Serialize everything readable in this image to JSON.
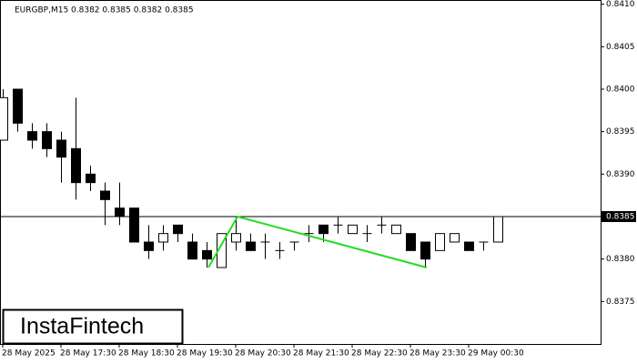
{
  "chart_data": {
    "type": "candlestick",
    "title": "EURGBP,M15  0.8382 0.8385 0.8382 0.8385",
    "logo": "InstaFintech",
    "categories": [
      "28 May 2025",
      null,
      null,
      null,
      "28 May 17:30",
      null,
      null,
      null,
      "28 May 18:30",
      null,
      null,
      null,
      "28 May 19:30",
      null,
      null,
      null,
      "28 May 20:30",
      null,
      null,
      null,
      "28 May 21:30",
      null,
      null,
      null,
      "28 May 22:30",
      null,
      null,
      null,
      "28 May 23:30",
      null,
      null,
      null,
      "29 May 00:30",
      null,
      null
    ],
    "open": [
      0.8394,
      0.84,
      0.8395,
      0.8395,
      0.8394,
      0.8393,
      0.839,
      0.8388,
      0.8386,
      0.8386,
      0.8382,
      0.8382,
      0.8384,
      0.8382,
      0.8381,
      0.8379,
      0.8382,
      0.8382,
      0.8382,
      0.8381,
      0.8382,
      0.8383,
      0.8384,
      0.8384,
      0.8383,
      0.8383,
      0.8384,
      0.8383,
      0.8383,
      0.8382,
      0.8381,
      0.8382,
      0.8382,
      0.8382,
      0.8382
    ],
    "high": [
      0.84,
      0.84,
      0.8396,
      0.8396,
      0.8395,
      0.8399,
      0.8391,
      0.8389,
      0.8389,
      0.8386,
      0.8384,
      0.8384,
      0.8384,
      0.8383,
      0.8382,
      0.8383,
      0.8385,
      0.8383,
      0.8383,
      0.8382,
      0.8382,
      0.8384,
      0.8384,
      0.8385,
      0.8384,
      0.8384,
      0.8385,
      0.8384,
      0.8383,
      0.8382,
      0.8383,
      0.8383,
      0.8382,
      0.8382,
      0.8385
    ],
    "low": [
      0.8394,
      0.8395,
      0.8393,
      0.8392,
      0.8389,
      0.8387,
      0.8388,
      0.8384,
      0.8384,
      0.8382,
      0.838,
      0.8381,
      0.8382,
      0.838,
      0.8379,
      0.8379,
      0.8381,
      0.8381,
      0.838,
      0.838,
      0.8381,
      0.8382,
      0.8382,
      0.8383,
      0.8383,
      0.8382,
      0.8383,
      0.8383,
      0.8381,
      0.8379,
      0.8381,
      0.8382,
      0.8381,
      0.8381,
      0.8382
    ],
    "close": [
      0.8399,
      0.8396,
      0.8394,
      0.8393,
      0.8392,
      0.8389,
      0.8389,
      0.8387,
      0.8385,
      0.8382,
      0.8381,
      0.8383,
      0.8383,
      0.838,
      0.838,
      0.8383,
      0.8383,
      0.8381,
      0.8382,
      0.8381,
      0.8382,
      0.8383,
      0.8383,
      0.8384,
      0.8384,
      0.8383,
      0.8384,
      0.8384,
      0.8381,
      0.838,
      0.8383,
      0.8383,
      0.8381,
      0.8382,
      0.8385
    ],
    "up_color": "#ffffff",
    "down_color": "#000000",
    "pattern": {
      "color": "#22dd22",
      "x": [
        14,
        16,
        29
      ],
      "values": [
        0.8379,
        0.8385,
        0.8379
      ]
    },
    "current_price": {
      "value": 0.8385,
      "label": "0.8385"
    },
    "ylim": [
      0.837,
      0.84105
    ],
    "yticks": [
      {
        "value": 0.841,
        "label": "0.8410"
      },
      {
        "value": 0.8405,
        "label": "0.8405"
      },
      {
        "value": 0.84,
        "label": "0.8400"
      },
      {
        "value": 0.8395,
        "label": "0.8395"
      },
      {
        "value": 0.839,
        "label": "0.8390"
      },
      {
        "value": 0.838,
        "label": "0.8380"
      },
      {
        "value": 0.8375,
        "label": "0.8375"
      }
    ]
  }
}
